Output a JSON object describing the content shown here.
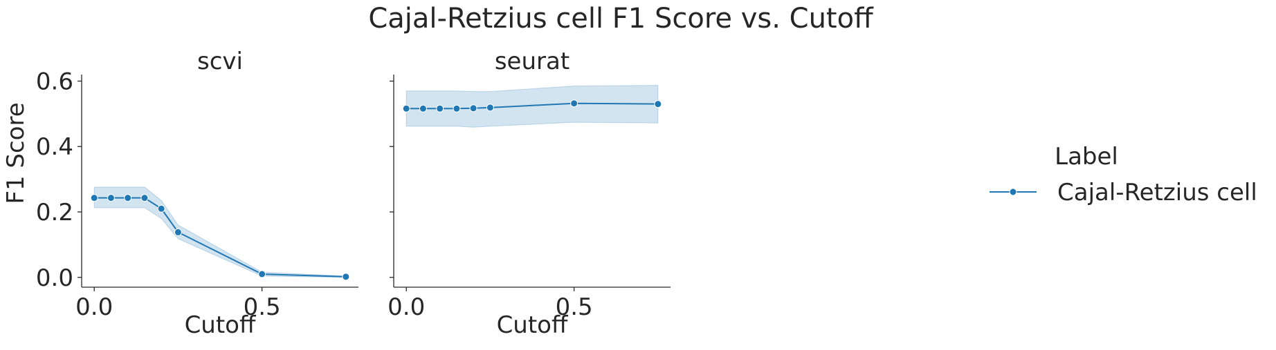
{
  "figure": {
    "title": "Cajal-Retzius cell F1 Score vs. Cutoff",
    "ylabel": "F1 Score",
    "legend": {
      "title": "Label",
      "entries": [
        "Cajal-Retzius cell"
      ]
    }
  },
  "chart_data": [
    {
      "type": "line",
      "title": "scvi",
      "xlabel": "Cutoff",
      "ylabel": "F1 Score",
      "xlim": [
        -0.0375,
        0.7875
      ],
      "ylim": [
        -0.03,
        0.62
      ],
      "xticks": [
        0.0,
        0.5
      ],
      "xtick_labels": [
        "0.0",
        "0.5"
      ],
      "yticks": [
        0.0,
        0.2,
        0.4,
        0.6
      ],
      "ytick_labels": [
        "0.0",
        "0.2",
        "0.4",
        "0.6"
      ],
      "series": [
        {
          "name": "Cajal-Retzius cell",
          "color": "#1f77b4",
          "x": [
            0.0,
            0.05,
            0.1,
            0.15,
            0.2,
            0.25,
            0.5,
            0.75
          ],
          "y": [
            0.243,
            0.243,
            0.243,
            0.243,
            0.21,
            0.138,
            0.01,
            0.002
          ],
          "ci_low": [
            0.213,
            0.213,
            0.213,
            0.213,
            0.18,
            0.118,
            0.004,
            0.0
          ],
          "ci_high": [
            0.276,
            0.276,
            0.276,
            0.276,
            0.235,
            0.16,
            0.016,
            0.004
          ]
        }
      ]
    },
    {
      "type": "line",
      "title": "seurat",
      "xlabel": "Cutoff",
      "ylabel": "",
      "xlim": [
        -0.0375,
        0.7875
      ],
      "ylim": [
        -0.03,
        0.62
      ],
      "xticks": [
        0.0,
        0.5
      ],
      "xtick_labels": [
        "0.0",
        "0.5"
      ],
      "yticks": [
        0.0,
        0.2,
        0.4,
        0.6
      ],
      "ytick_labels": [],
      "series": [
        {
          "name": "Cajal-Retzius cell",
          "color": "#1f77b4",
          "x": [
            0.0,
            0.05,
            0.1,
            0.15,
            0.2,
            0.25,
            0.5,
            0.75
          ],
          "y": [
            0.516,
            0.516,
            0.516,
            0.516,
            0.517,
            0.519,
            0.532,
            0.53
          ],
          "ci_low": [
            0.462,
            0.462,
            0.462,
            0.462,
            0.459,
            0.462,
            0.474,
            0.472
          ],
          "ci_high": [
            0.57,
            0.57,
            0.57,
            0.57,
            0.568,
            0.568,
            0.585,
            0.587
          ]
        }
      ]
    }
  ]
}
